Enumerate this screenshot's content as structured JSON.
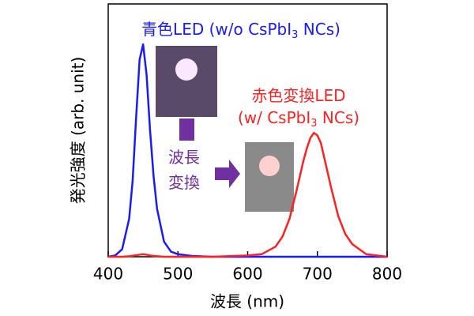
{
  "chart_data": {
    "type": "line",
    "x": [
      400,
      410,
      420,
      430,
      435,
      440,
      445,
      450,
      455,
      460,
      465,
      470,
      480,
      490,
      500,
      520,
      550,
      600,
      620,
      640,
      650,
      660,
      670,
      680,
      685,
      690,
      695,
      700,
      705,
      710,
      715,
      720,
      730,
      740,
      750,
      770,
      800
    ],
    "series": [
      {
        "color": "#1a1aff",
        "values": [
          0,
          0.005,
          0.03,
          0.15,
          0.3,
          0.55,
          0.78,
          0.84,
          0.72,
          0.5,
          0.32,
          0.19,
          0.06,
          0.02,
          0.01,
          0.003,
          0,
          0,
          0,
          0,
          0,
          0,
          0,
          0,
          0,
          0,
          0,
          0,
          0,
          0,
          0,
          0,
          0,
          0,
          0,
          0,
          0
        ]
      },
      {
        "color": "#ff2020",
        "values": [
          0,
          0,
          0,
          0.002,
          0.004,
          0.006,
          0.008,
          0.01,
          0.008,
          0.005,
          0.003,
          0.002,
          0,
          0,
          0,
          0,
          0,
          0.005,
          0.01,
          0.04,
          0.08,
          0.15,
          0.26,
          0.38,
          0.43,
          0.47,
          0.49,
          0.48,
          0.45,
          0.39,
          0.33,
          0.27,
          0.16,
          0.09,
          0.05,
          0.01,
          0
        ]
      }
    ],
    "xlim": [
      400,
      800
    ],
    "xticks": [
      400,
      500,
      600,
      700,
      800
    ],
    "ylim": [
      0,
      1
    ],
    "xlabel": "波長 (nm)",
    "ylabel": "発光強度 (arb. unit)",
    "annotations": [
      {
        "parts": [
          "青色LED (w/o CsPbI",
          "3",
          " NCs)"
        ],
        "color": "#1a1aff"
      },
      {
        "parts": [
          "赤色変換LED"
        ],
        "color": "#ff2020"
      },
      {
        "parts": [
          "(w/ CsPbI",
          "3",
          " NCs)"
        ],
        "color": "#ff2020"
      },
      {
        "parts": [
          "波長"
        ],
        "color": "#7030a0"
      },
      {
        "parts": [
          "変換"
        ],
        "color": "#7030a0"
      }
    ]
  }
}
